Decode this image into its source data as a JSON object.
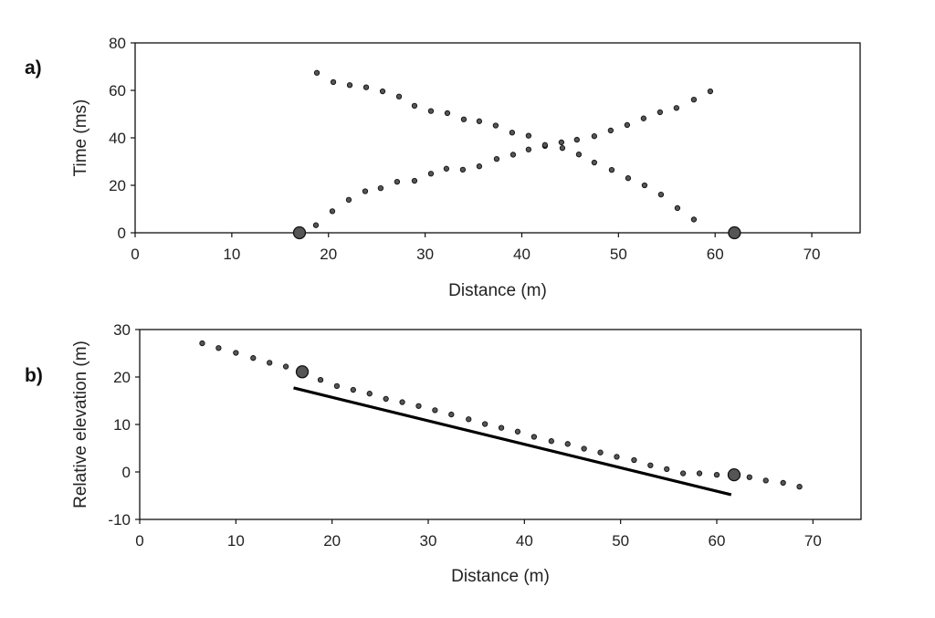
{
  "chart_data": [
    {
      "type": "scatter",
      "panel_label": "a)",
      "xlabel": "Distance (m)",
      "ylabel": "Time (ms)",
      "xlim": [
        0,
        75
      ],
      "ylim": [
        0,
        80
      ],
      "xticks": [
        "0",
        "10",
        "20",
        "30",
        "40",
        "50",
        "60",
        "70"
      ],
      "yticks": [
        "0",
        "20",
        "40",
        "60",
        "80"
      ],
      "grid": false,
      "series": [
        {
          "marker": "small-dot",
          "color": "#555555",
          "points": [
            [
              18.7,
              3.2
            ],
            [
              20.4,
              9.1
            ],
            [
              22.1,
              13.9
            ],
            [
              23.8,
              17.5
            ],
            [
              25.4,
              18.8
            ],
            [
              27.1,
              21.5
            ],
            [
              28.9,
              21.9
            ],
            [
              30.6,
              24.9
            ],
            [
              32.2,
              27.0
            ],
            [
              33.9,
              26.6
            ],
            [
              35.6,
              28.0
            ],
            [
              37.4,
              31.1
            ],
            [
              39.1,
              32.9
            ],
            [
              40.7,
              35.1
            ],
            [
              42.4,
              36.6
            ],
            [
              44.1,
              38.1
            ],
            [
              45.7,
              39.2
            ],
            [
              47.5,
              40.7
            ],
            [
              49.2,
              43.1
            ],
            [
              50.9,
              45.4
            ],
            [
              52.6,
              48.2
            ],
            [
              54.3,
              50.8
            ],
            [
              56.0,
              52.6
            ],
            [
              57.8,
              56.1
            ],
            [
              59.5,
              59.6
            ]
          ]
        },
        {
          "marker": "small-dot",
          "color": "#555555",
          "points": [
            [
              18.8,
              67.4
            ],
            [
              20.5,
              63.5
            ],
            [
              22.2,
              62.2
            ],
            [
              23.9,
              61.3
            ],
            [
              25.6,
              59.6
            ],
            [
              27.3,
              57.4
            ],
            [
              28.9,
              53.5
            ],
            [
              30.6,
              51.3
            ],
            [
              32.3,
              50.4
            ],
            [
              34.0,
              47.8
            ],
            [
              35.6,
              47.0
            ],
            [
              37.3,
              45.2
            ],
            [
              39.0,
              42.2
            ],
            [
              40.7,
              40.9
            ],
            [
              42.4,
              37.0
            ],
            [
              44.2,
              35.7
            ],
            [
              45.9,
              33.0
            ],
            [
              47.5,
              29.6
            ],
            [
              49.3,
              26.5
            ],
            [
              51.0,
              23.0
            ],
            [
              52.7,
              20.0
            ],
            [
              54.4,
              16.1
            ],
            [
              56.1,
              10.4
            ],
            [
              57.8,
              5.6
            ]
          ]
        },
        {
          "marker": "large-dot",
          "color": "#555555",
          "points": [
            [
              17.0,
              0.0
            ],
            [
              62.0,
              0.0
            ]
          ]
        }
      ]
    },
    {
      "type": "scatter",
      "panel_label": "b)",
      "xlabel": "Distance (m)",
      "ylabel": "Relative elevation (m)",
      "xlim": [
        0,
        75
      ],
      "ylim": [
        -10,
        30
      ],
      "xticks": [
        "0",
        "10",
        "20",
        "30",
        "40",
        "50",
        "60",
        "70"
      ],
      "yticks": [
        "-10",
        "0",
        "10",
        "20",
        "30"
      ],
      "grid": false,
      "series": [
        {
          "marker": "small-dot",
          "color": "#555555",
          "points": [
            [
              6.5,
              27.1
            ],
            [
              8.2,
              26.1
            ],
            [
              10.0,
              25.1
            ],
            [
              11.8,
              24.0
            ],
            [
              13.5,
              23.0
            ],
            [
              15.2,
              22.2
            ],
            [
              17.0,
              21.2
            ],
            [
              18.8,
              19.4
            ],
            [
              20.5,
              18.1
            ],
            [
              22.2,
              17.3
            ],
            [
              23.9,
              16.5
            ],
            [
              25.6,
              15.4
            ],
            [
              27.3,
              14.7
            ],
            [
              29.0,
              13.9
            ],
            [
              30.7,
              13.0
            ],
            [
              32.4,
              12.1
            ],
            [
              34.2,
              11.1
            ],
            [
              35.9,
              10.1
            ],
            [
              37.6,
              9.3
            ],
            [
              39.3,
              8.5
            ],
            [
              41.0,
              7.4
            ],
            [
              42.8,
              6.5
            ],
            [
              44.5,
              5.9
            ],
            [
              46.2,
              4.9
            ],
            [
              47.9,
              4.1
            ],
            [
              49.6,
              3.2
            ],
            [
              51.4,
              2.5
            ],
            [
              53.1,
              1.4
            ],
            [
              54.8,
              0.6
            ],
            [
              56.5,
              -0.3
            ],
            [
              58.2,
              -0.3
            ],
            [
              60.0,
              -0.6
            ],
            [
              61.7,
              -0.7
            ],
            [
              63.4,
              -1.1
            ],
            [
              65.1,
              -1.8
            ],
            [
              66.9,
              -2.3
            ],
            [
              68.6,
              -3.1
            ]
          ]
        },
        {
          "marker": "large-dot",
          "color": "#555555",
          "points": [
            [
              16.9,
              21.1
            ],
            [
              61.8,
              -0.6
            ]
          ]
        },
        {
          "marker": "line",
          "color": "#000000",
          "points": [
            [
              16.0,
              17.7
            ],
            [
              61.5,
              -4.8
            ]
          ]
        }
      ]
    }
  ]
}
